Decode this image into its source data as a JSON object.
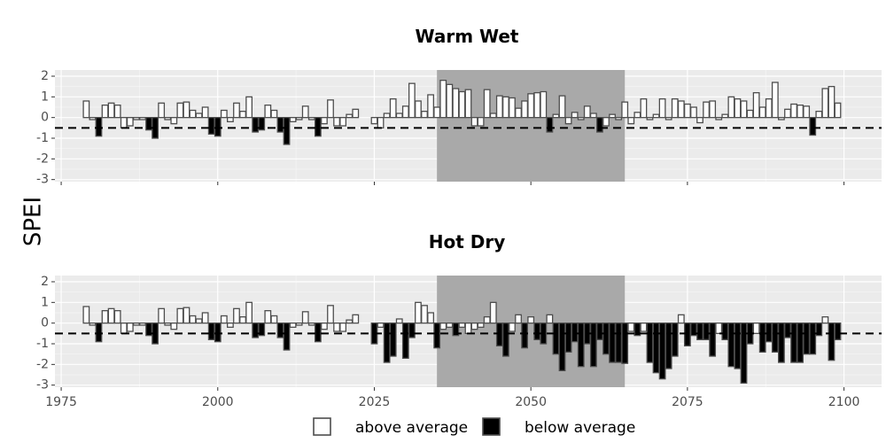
{
  "chart_data": {
    "type": "bar",
    "ylabel": "SPEI",
    "ylim": [
      -3.1,
      2.3
    ],
    "xlim": [
      1974,
      2106
    ],
    "x_ticks": [
      1975,
      2000,
      2025,
      2050,
      2075,
      2100
    ],
    "y_ticks": [
      -3,
      -2,
      -1,
      0,
      1,
      2
    ],
    "threshold": -0.5,
    "highlight_range": [
      2035,
      2065
    ],
    "grid": true,
    "legend": {
      "position": "bottom",
      "items": [
        {
          "label": "above average",
          "color": "#ffffff"
        },
        {
          "label": "below average",
          "color": "#000000"
        }
      ]
    },
    "panels": [
      {
        "title": "Warm Wet",
        "years": [
          1979,
          1980,
          1981,
          1982,
          1983,
          1984,
          1985,
          1986,
          1987,
          1988,
          1989,
          1990,
          1991,
          1992,
          1993,
          1994,
          1995,
          1996,
          1997,
          1998,
          1999,
          2000,
          2001,
          2002,
          2003,
          2004,
          2005,
          2006,
          2007,
          2008,
          2009,
          2010,
          2011,
          2012,
          2013,
          2014,
          2015,
          2016,
          2017,
          2018,
          2019,
          2020,
          2021,
          2022,
          2025,
          2026,
          2027,
          2028,
          2029,
          2030,
          2031,
          2032,
          2033,
          2034,
          2035,
          2036,
          2037,
          2038,
          2039,
          2040,
          2041,
          2042,
          2043,
          2044,
          2045,
          2046,
          2047,
          2048,
          2049,
          2050,
          2051,
          2052,
          2053,
          2054,
          2055,
          2056,
          2057,
          2058,
          2059,
          2060,
          2061,
          2062,
          2063,
          2064,
          2065,
          2066,
          2067,
          2068,
          2069,
          2070,
          2071,
          2072,
          2073,
          2074,
          2075,
          2076,
          2077,
          2078,
          2079,
          2080,
          2081,
          2082,
          2083,
          2084,
          2085,
          2086,
          2087,
          2088,
          2089,
          2090,
          2091,
          2092,
          2093,
          2094,
          2095,
          2096,
          2097,
          2098,
          2099
        ],
        "values": [
          0.8,
          -0.1,
          -0.9,
          0.6,
          0.7,
          0.6,
          -0.5,
          -0.4,
          -0.1,
          -0.1,
          -0.6,
          -1.0,
          0.7,
          -0.1,
          -0.3,
          0.7,
          0.75,
          0.35,
          0.2,
          0.5,
          -0.8,
          -0.9,
          0.35,
          -0.2,
          0.7,
          0.3,
          1.0,
          -0.7,
          -0.6,
          0.6,
          0.35,
          -0.7,
          -1.3,
          -0.2,
          -0.1,
          0.55,
          -0.1,
          -0.9,
          -0.3,
          0.85,
          -0.4,
          -0.4,
          0.15,
          0.4,
          -0.3,
          -0.5,
          0.2,
          0.9,
          0.2,
          0.55,
          1.65,
          0.8,
          0.3,
          1.1,
          0.5,
          1.8,
          1.6,
          1.4,
          1.25,
          1.35,
          -0.4,
          -0.4,
          1.35,
          0.2,
          1.05,
          1.0,
          0.95,
          0.45,
          0.8,
          1.15,
          1.2,
          1.25,
          -0.7,
          0.15,
          1.05,
          -0.3,
          0.25,
          -0.1,
          0.55,
          0.2,
          -0.7,
          -0.4,
          0.15,
          -0.1,
          0.75,
          -0.3,
          0.25,
          0.9,
          -0.1,
          0.15,
          0.9,
          -0.1,
          0.9,
          0.8,
          0.65,
          0.5,
          -0.25,
          0.75,
          0.8,
          -0.1,
          0.15,
          1.0,
          0.9,
          0.8,
          0.35,
          1.2,
          0.5,
          0.9,
          1.7,
          -0.1,
          0.4,
          0.65,
          0.6,
          0.55,
          -0.85,
          0.3,
          1.4,
          1.5,
          0.7
        ]
      },
      {
        "title": "Hot Dry",
        "years": [
          1979,
          1980,
          1981,
          1982,
          1983,
          1984,
          1985,
          1986,
          1987,
          1988,
          1989,
          1990,
          1991,
          1992,
          1993,
          1994,
          1995,
          1996,
          1997,
          1998,
          1999,
          2000,
          2001,
          2002,
          2003,
          2004,
          2005,
          2006,
          2007,
          2008,
          2009,
          2010,
          2011,
          2012,
          2013,
          2014,
          2015,
          2016,
          2017,
          2018,
          2019,
          2020,
          2021,
          2022,
          2025,
          2026,
          2027,
          2028,
          2029,
          2030,
          2031,
          2032,
          2033,
          2034,
          2035,
          2036,
          2037,
          2038,
          2039,
          2040,
          2041,
          2042,
          2043,
          2044,
          2045,
          2046,
          2047,
          2048,
          2049,
          2050,
          2051,
          2052,
          2053,
          2054,
          2055,
          2056,
          2057,
          2058,
          2059,
          2060,
          2061,
          2062,
          2063,
          2064,
          2065,
          2066,
          2067,
          2068,
          2069,
          2070,
          2071,
          2072,
          2073,
          2074,
          2075,
          2076,
          2077,
          2078,
          2079,
          2080,
          2081,
          2082,
          2083,
          2084,
          2085,
          2086,
          2087,
          2088,
          2089,
          2090,
          2091,
          2092,
          2093,
          2094,
          2095,
          2096,
          2097,
          2098,
          2099
        ],
        "values": [
          0.8,
          -0.1,
          -0.9,
          0.6,
          0.7,
          0.6,
          -0.5,
          -0.4,
          -0.1,
          -0.1,
          -0.6,
          -1.0,
          0.7,
          -0.1,
          -0.3,
          0.7,
          0.75,
          0.35,
          0.2,
          0.5,
          -0.8,
          -0.9,
          0.35,
          -0.2,
          0.7,
          0.3,
          1.0,
          -0.7,
          -0.6,
          0.6,
          0.35,
          -0.7,
          -1.3,
          -0.2,
          -0.1,
          0.55,
          -0.1,
          -0.9,
          -0.3,
          0.85,
          -0.4,
          -0.4,
          0.15,
          0.4,
          -1.0,
          -0.2,
          -1.9,
          -1.6,
          0.2,
          -1.7,
          -0.7,
          1.0,
          0.85,
          0.5,
          -1.2,
          -0.3,
          -0.2,
          -0.6,
          -0.2,
          -0.5,
          -0.3,
          -0.2,
          0.3,
          1.0,
          -1.1,
          -1.6,
          -0.4,
          0.4,
          -1.2,
          0.3,
          -0.8,
          -1.0,
          0.4,
          -1.5,
          -2.3,
          -1.4,
          -0.9,
          -2.1,
          -1.0,
          -2.1,
          -0.8,
          -1.5,
          -1.9,
          -1.9,
          -1.95,
          -0.4,
          -0.6,
          -0.4,
          -1.9,
          -2.4,
          -2.7,
          -2.2,
          -1.6,
          0.4,
          -1.1,
          -0.6,
          -0.8,
          -0.8,
          -1.6,
          -0.5,
          -0.8,
          -2.1,
          -2.2,
          -2.9,
          -1.0,
          -0.5,
          -1.4,
          -0.9,
          -1.4,
          -1.9,
          -0.7,
          -1.9,
          -1.9,
          -1.5,
          -1.5,
          -0.6,
          0.3,
          -1.8,
          -0.8
        ]
      }
    ]
  }
}
